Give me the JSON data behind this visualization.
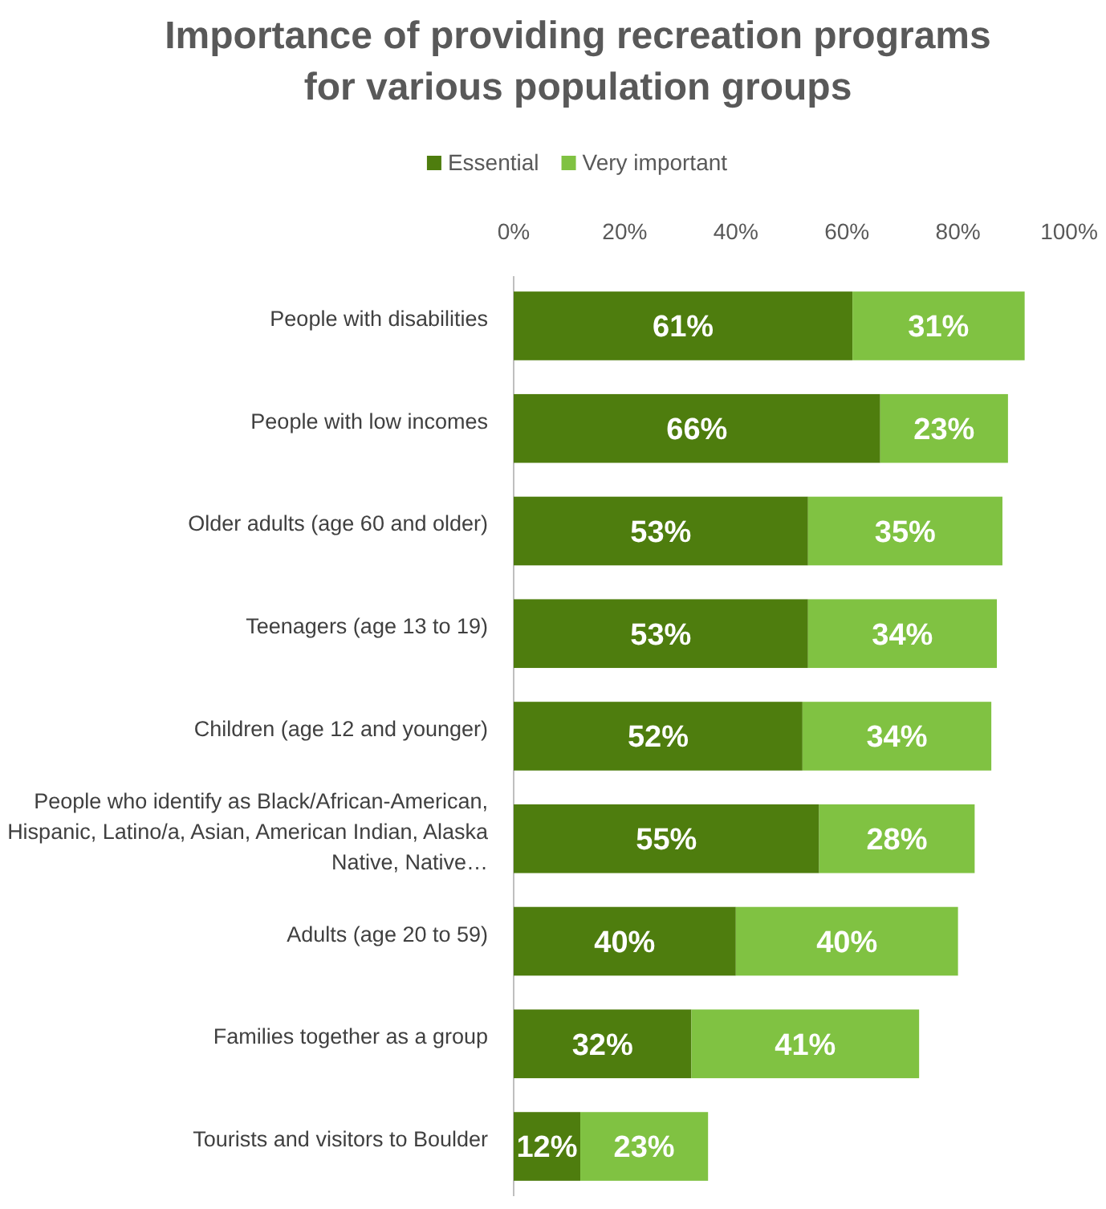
{
  "chart_data": {
    "type": "bar",
    "orientation": "horizontal",
    "stacked": true,
    "title": "Importance of providing recreation programs for various population groups",
    "categories": [
      "People with disabilities",
      "People with low incomes",
      "Older adults (age 60 and older)",
      "Teenagers (age 13 to 19)",
      "Children (age 12 and younger)",
      "People who identify as Black/African-American, Hispanic, Latino/a, Asian, American Indian, Alaska Native, Native…",
      "Adults (age 20 to 59)",
      "Families together as a group",
      "Tourists and visitors to Boulder"
    ],
    "series": [
      {
        "name": "Essential",
        "color": "#4e7d0e",
        "values": [
          61,
          66,
          53,
          53,
          52,
          55,
          40,
          32,
          12
        ],
        "value_labels": [
          "61%",
          "66%",
          "53%",
          "53%",
          "52%",
          "55%",
          "40%",
          "32%",
          "12%"
        ]
      },
      {
        "name": "Very important",
        "color": "#80c242",
        "values": [
          31,
          23,
          35,
          34,
          34,
          28,
          40,
          41,
          23
        ],
        "value_labels": [
          "31%",
          "23%",
          "35%",
          "34%",
          "34%",
          "28%",
          "40%",
          "41%",
          "23%"
        ]
      }
    ],
    "xlim": [
      0,
      100
    ],
    "xticks": [
      {
        "value": 0,
        "label": "0%"
      },
      {
        "value": 20,
        "label": "20%"
      },
      {
        "value": 40,
        "label": "40%"
      },
      {
        "value": 60,
        "label": "60%"
      },
      {
        "value": 80,
        "label": "80%"
      },
      {
        "value": 100,
        "label": "100%"
      }
    ],
    "grid": false,
    "legend": "top"
  }
}
